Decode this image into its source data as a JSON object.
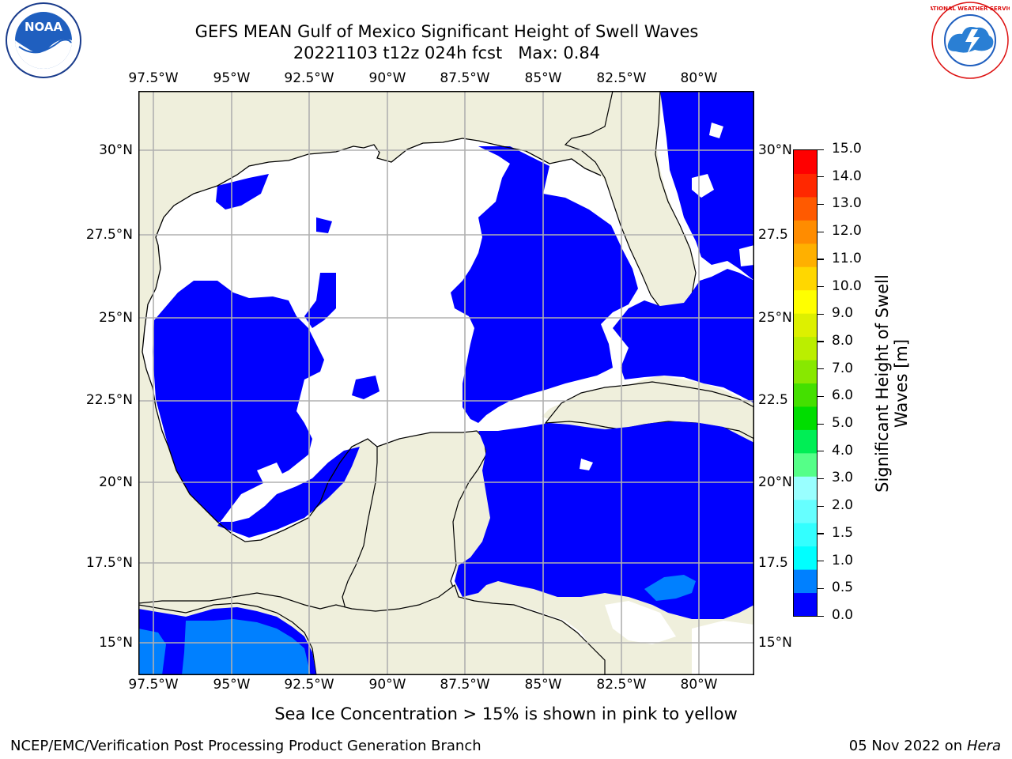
{
  "title": {
    "line1": "GEFS MEAN Gulf of Mexico Significant Height of Swell Waves",
    "line2": "20221103 t12z 024h fcst   Max: 0.84"
  },
  "map": {
    "lon_labels": [
      "97.5°W",
      "95°W",
      "92.5°W",
      "90°W",
      "87.5°W",
      "85°W",
      "82.5°W",
      "80°W"
    ],
    "lat_labels_left": [
      "30°N",
      "27.5°N",
      "25°N",
      "22.5°N",
      "20°N",
      "17.5°N",
      "15°N"
    ],
    "lat_labels_right": [
      "30°N",
      "27.5",
      "25°N",
      "22.5",
      "20°N",
      "17.5",
      "15°N"
    ],
    "extent": {
      "lon_min": -98,
      "lon_max": -78.2,
      "lat_min": 14.05,
      "lat_max": 31.75
    },
    "land_color": "#efefdc",
    "water_color": "#ffffff",
    "swell_color_0_05": "#0000ff",
    "swell_color_05_10": "#0080ff"
  },
  "colorbar": {
    "label": "Significant Height of Swell\nWaves [m]",
    "ticks": [
      "15.0",
      "14.0",
      "13.0",
      "12.0",
      "11.0",
      "10.0",
      "9.0",
      "8.0",
      "7.0",
      "6.0",
      "5.0",
      "4.0",
      "3.0",
      "2.0",
      "1.5",
      "1.0",
      "0.5",
      "0.0"
    ],
    "colors_bottom_to_top": [
      "#0000ff",
      "#0080ff",
      "#00ffff",
      "#33ffff",
      "#66ffff",
      "#99ffff",
      "#55ff88",
      "#00ee55",
      "#00dd00",
      "#44e000",
      "#88e800",
      "#bbee00",
      "#ddf000",
      "#ffff00",
      "#ffd700",
      "#ffb000",
      "#ff8c00",
      "#ff5a00",
      "#ff2800",
      "#ff0000"
    ]
  },
  "subtitle": "Sea Ice Concentration > 15% is shown in pink to yellow",
  "footer": {
    "left": "NCEP/EMC/Verification Post Processing Product Generation Branch",
    "right_date": "05 Nov 2022 on",
    "right_host": "Hera"
  },
  "logos": {
    "noaa_text": "NOAA",
    "nws_text": "NATIONAL WEATHER SERVICE"
  }
}
